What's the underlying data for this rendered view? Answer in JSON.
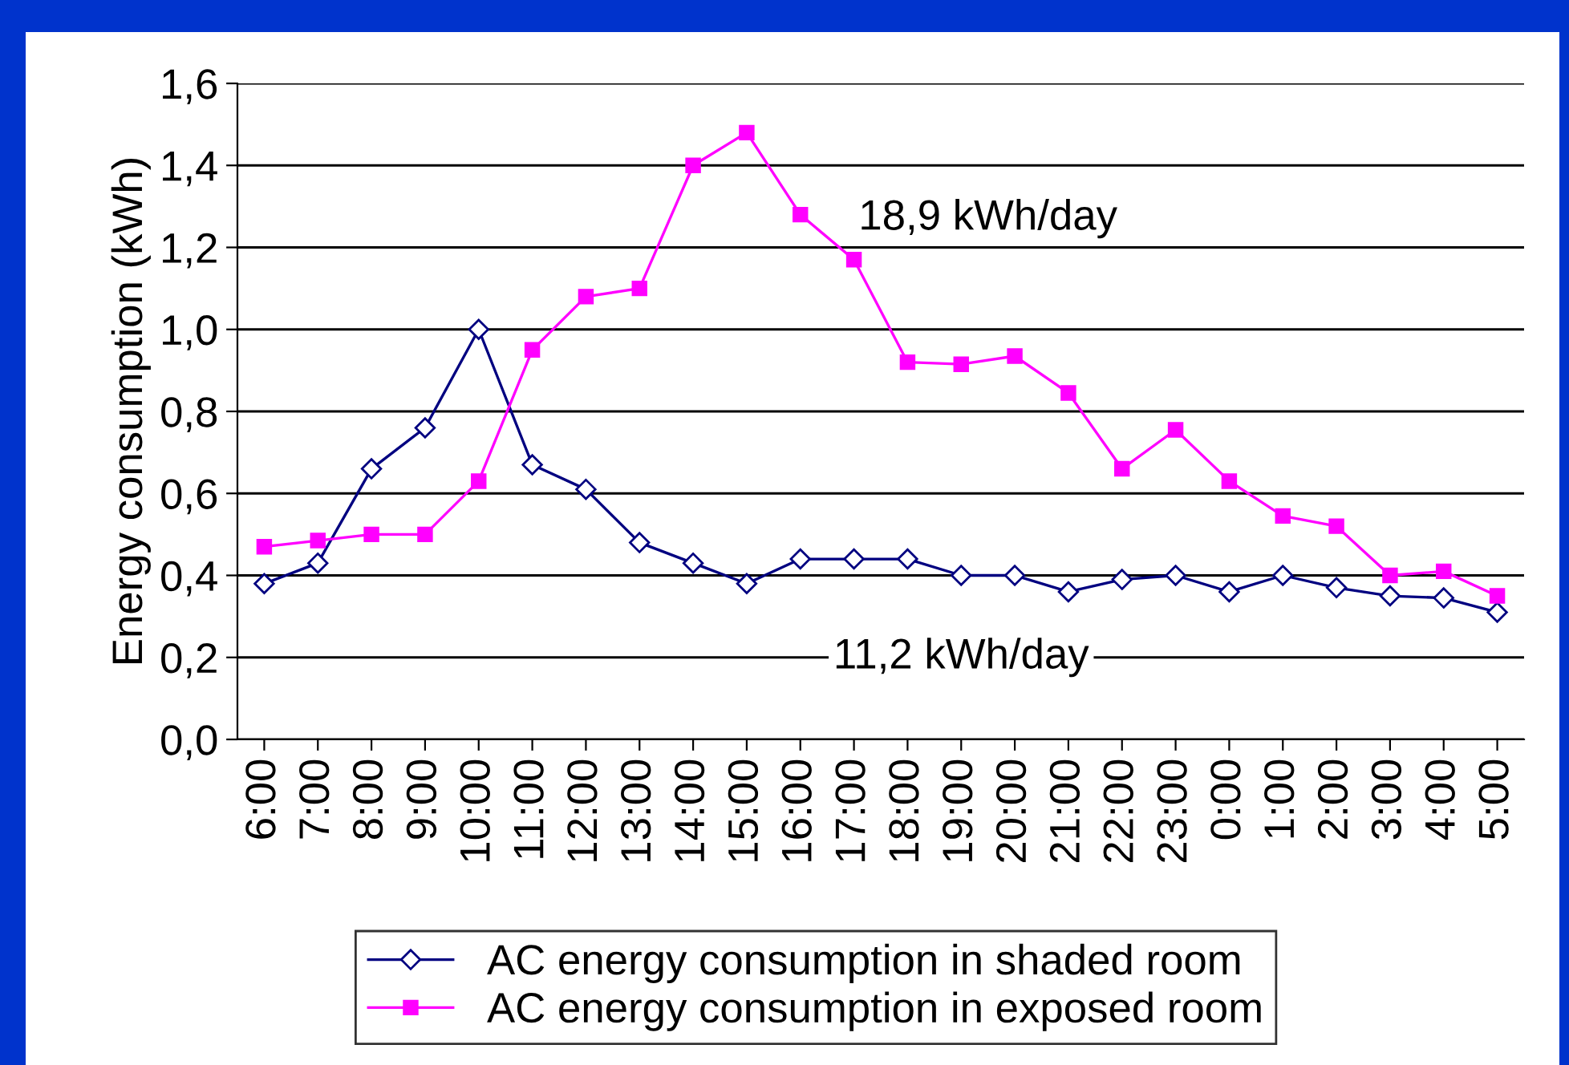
{
  "chart_data": {
    "type": "line",
    "ylabel": "Energy consumption (kWh)",
    "categories": [
      "6:00",
      "7:00",
      "8:00",
      "9:00",
      "10:00",
      "11:00",
      "12:00",
      "13:00",
      "14:00",
      "15:00",
      "16:00",
      "17:00",
      "18:00",
      "19:00",
      "20:00",
      "21:00",
      "22:00",
      "23:00",
      "0:00",
      "1:00",
      "2:00",
      "3:00",
      "4:00",
      "5:00"
    ],
    "series": [
      {
        "name": "AC energy consumption in shaded room",
        "color": "#000080",
        "marker": "diamond",
        "values": [
          0.38,
          0.43,
          0.66,
          0.76,
          1.0,
          0.67,
          0.61,
          0.48,
          0.43,
          0.38,
          0.44,
          0.44,
          0.44,
          0.4,
          0.4,
          0.36,
          0.39,
          0.4,
          0.36,
          0.4,
          0.37,
          0.35,
          0.345,
          0.31
        ]
      },
      {
        "name": "AC energy consumption in exposed room",
        "color": "#ff00ff",
        "marker": "square",
        "values": [
          0.47,
          0.485,
          0.5,
          0.5,
          0.63,
          0.95,
          1.08,
          1.1,
          1.4,
          1.48,
          1.28,
          1.17,
          0.92,
          0.915,
          0.935,
          0.845,
          0.66,
          0.755,
          0.63,
          0.545,
          0.52,
          0.4,
          0.41,
          0.35
        ]
      }
    ],
    "ylim": [
      0,
      1.6
    ],
    "yticks": [
      {
        "value": 0,
        "label": "0,0"
      },
      {
        "value": 0.2,
        "label": "0,2"
      },
      {
        "value": 0.4,
        "label": "0,4"
      },
      {
        "value": 0.6,
        "label": "0,6"
      },
      {
        "value": 0.8,
        "label": "0,8"
      },
      {
        "value": 1.0,
        "label": "1,0"
      },
      {
        "value": 1.2,
        "label": "1,2"
      },
      {
        "value": 1.4,
        "label": "1,4"
      },
      {
        "value": 1.6,
        "label": "1,6"
      }
    ],
    "grid": "y",
    "legend": "bottom",
    "annotations": [
      "18,9 kWh/day",
      "11,2 kWh/day"
    ]
  }
}
